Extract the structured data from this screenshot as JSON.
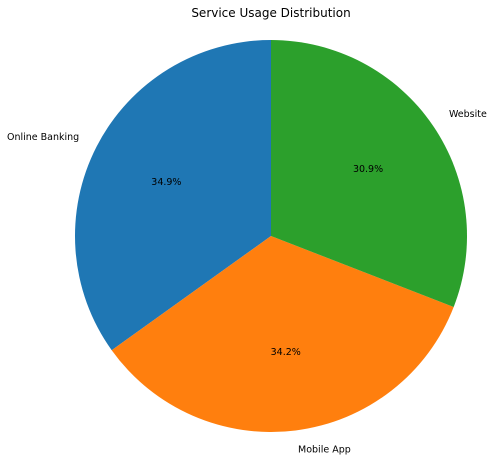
{
  "chart_data": {
    "type": "pie",
    "title": "Service Usage Distribution",
    "categories": [
      "Online Banking",
      "Mobile App",
      "Website"
    ],
    "values": [
      34.9,
      34.2,
      30.9
    ],
    "percent_labels": [
      "34.9%",
      "34.2%",
      "30.9%"
    ],
    "colors": [
      "#1f77b4",
      "#ff7f0e",
      "#2ca02c"
    ],
    "start_angle_deg": 90,
    "direction": "counterclockwise",
    "legend": "none"
  }
}
